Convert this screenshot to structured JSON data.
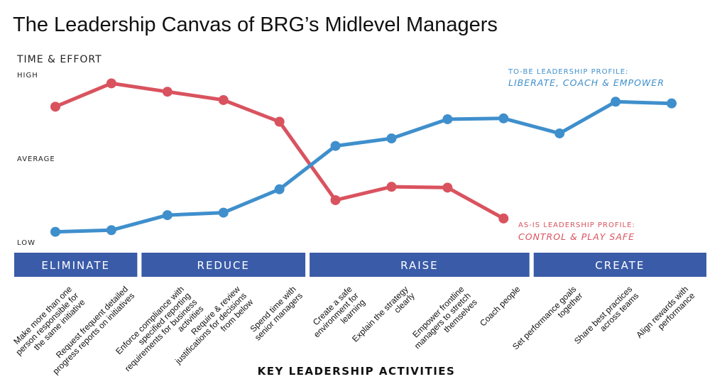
{
  "chart_data": {
    "type": "line",
    "title": "The Leadership Canvas of BRG’s Midlevel Managers",
    "ylabel": "TIME & EFFORT",
    "xlabel": "KEY LEADERSHIP ACTIVITIES",
    "y_ticks": [
      "HIGH",
      "AVERAGE",
      "LOW"
    ],
    "ylim": [
      0,
      10
    ],
    "categories": [
      [
        "Make more than one",
        "person responsible for",
        "the same initiative"
      ],
      [
        "Request frequent detailed",
        "progress reports on initiatives"
      ],
      [
        "Enforce compliance with",
        "specified reporting",
        "requirements for business",
        "activities"
      ],
      [
        "Require & review",
        "justifications for decisions",
        "from below"
      ],
      [
        "Spend time with",
        "senior managers"
      ],
      [
        "Create a safe",
        "environment for",
        "learning"
      ],
      [
        "Explain the strategy",
        "clearly"
      ],
      [
        "Empower frontline",
        "managers to stretch",
        "themselves"
      ],
      [
        "Coach people"
      ],
      [
        "Set performance goals",
        "together"
      ],
      [
        "Share best practices",
        "across teams"
      ],
      [
        "Align rewards with",
        "performance"
      ]
    ],
    "bands": [
      {
        "label": "ELIMINATE",
        "from": 0,
        "to": 1
      },
      {
        "label": "REDUCE",
        "from": 2,
        "to": 4
      },
      {
        "label": "RAISE",
        "from": 5,
        "to": 8
      },
      {
        "label": "CREATE",
        "from": 9,
        "to": 11
      }
    ],
    "series": [
      {
        "name_line1": "AS-IS LEADERSHIP PROFILE:",
        "name_line2": "CONTROL & PLAY SAFE",
        "color": "#d9535f",
        "values": [
          7.9,
          9.3,
          8.8,
          8.3,
          7.0,
          2.3,
          3.1,
          3.05,
          1.2,
          null,
          null,
          null
        ]
      },
      {
        "name_line1": "TO-BE LEADERSHIP PROFILE:",
        "name_line2": "LIBERATE, COACH & EMPOWER",
        "color": "#3f8fcc",
        "values": [
          0.4,
          0.5,
          1.4,
          1.55,
          2.95,
          5.55,
          6.0,
          7.15,
          7.2,
          6.3,
          8.2,
          8.1
        ]
      }
    ],
    "band_color": "#3a5ba8"
  }
}
